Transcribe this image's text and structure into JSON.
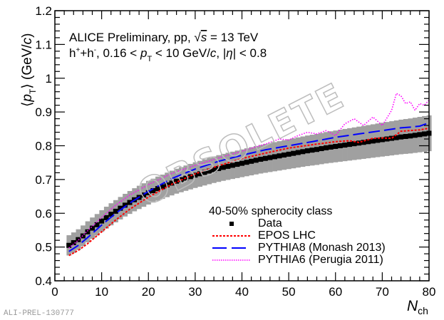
{
  "chart_data": {
    "type": "line",
    "title": "",
    "annotation_lines": {
      "line1_prefix": "ALICE Preliminary, pp, ",
      "line1_sqrt": "√",
      "line1_s": "s",
      "line1_suffix": " = 13 TeV",
      "line2_h": "h",
      "line2_plus": "+",
      "line2_mid": "+h",
      "line2_minus": "-",
      "line2_range": ", 0.16 < ",
      "line2_p": "p",
      "line2_T": "T",
      "line2_upper": " < 10 GeV/",
      "line2_c": "c",
      "line2_eta_pre": ", |",
      "line2_eta": "η",
      "line2_eta_post": "| < 0.8"
    },
    "xlabel": {
      "N": "N",
      "sub": "ch"
    },
    "ylabel": {
      "open": "⟨",
      "p": "p",
      "sub": "T",
      "close": "⟩ (GeV/",
      "c": "c",
      "end": ")"
    },
    "xlim": [
      0,
      80
    ],
    "ylim": [
      0.4,
      1.2
    ],
    "x_ticks": [
      "0",
      "10",
      "20",
      "30",
      "40",
      "50",
      "60",
      "70",
      "80"
    ],
    "y_ticks": [
      "0.4",
      "0.5",
      "0.6",
      "0.7",
      "0.8",
      "0.9",
      "1",
      "1.1",
      "1.2"
    ],
    "legend": {
      "header": "40-50% spherocity class",
      "placement": "bottom-right",
      "entries": [
        "Data",
        "EPOS LHC",
        "PYTHIA8 (Monash 2013)",
        "PYTHIA6 (Perugia 2011)"
      ]
    },
    "watermark_text": "OBSOLETE",
    "footer_label": "ALI-PREL-130777",
    "colors": {
      "data": "#000000",
      "syst": "#a0a0a0",
      "epos": "#ff0000",
      "pythia8": "#0000ff",
      "pythia6": "#ff00ff"
    },
    "series": [
      {
        "name": "Data",
        "x": [
          3,
          4,
          5,
          6,
          7,
          8,
          9,
          10,
          11,
          12,
          13,
          14,
          15,
          16,
          17,
          18,
          19,
          20,
          22,
          24,
          26,
          28,
          30,
          32,
          34,
          36,
          38,
          40,
          42,
          44,
          46,
          48,
          50,
          52,
          54,
          56,
          58,
          60,
          62,
          64,
          66,
          68,
          70,
          72,
          74,
          76,
          78,
          80
        ],
        "y": [
          0.505,
          0.513,
          0.522,
          0.533,
          0.545,
          0.556,
          0.566,
          0.577,
          0.587,
          0.597,
          0.606,
          0.615,
          0.624,
          0.632,
          0.64,
          0.647,
          0.654,
          0.661,
          0.673,
          0.684,
          0.695,
          0.704,
          0.713,
          0.721,
          0.729,
          0.736,
          0.742,
          0.748,
          0.754,
          0.76,
          0.765,
          0.77,
          0.775,
          0.78,
          0.785,
          0.789,
          0.794,
          0.798,
          0.802,
          0.806,
          0.81,
          0.814,
          0.818,
          0.822,
          0.826,
          0.829,
          0.833,
          0.837
        ],
        "syst": 0.03
      },
      {
        "name": "EPOS LHC",
        "x": [
          3,
          5,
          7,
          10,
          13,
          16,
          20,
          25,
          30,
          35,
          40,
          45,
          50,
          55,
          60,
          63,
          65,
          68,
          70,
          72,
          74,
          76,
          78,
          80
        ],
        "y": [
          0.475,
          0.49,
          0.51,
          0.545,
          0.58,
          0.612,
          0.648,
          0.686,
          0.717,
          0.741,
          0.762,
          0.778,
          0.793,
          0.803,
          0.812,
          0.815,
          0.81,
          0.822,
          0.823,
          0.822,
          0.843,
          0.845,
          0.847,
          0.852
        ]
      },
      {
        "name": "PYTHIA8 (Monash 2013)",
        "x": [
          3,
          5,
          7,
          10,
          13,
          16,
          20,
          25,
          30,
          35,
          40,
          45,
          50,
          55,
          60,
          65,
          70,
          74,
          76,
          78,
          80
        ],
        "y": [
          0.487,
          0.505,
          0.528,
          0.565,
          0.6,
          0.63,
          0.665,
          0.703,
          0.731,
          0.754,
          0.772,
          0.788,
          0.8,
          0.812,
          0.825,
          0.835,
          0.845,
          0.853,
          0.855,
          0.858,
          0.868
        ]
      },
      {
        "name": "PYTHIA6 (Perugia 2011)",
        "x": [
          3,
          5,
          7,
          10,
          13,
          16,
          20,
          25,
          30,
          35,
          40,
          45,
          48,
          50,
          52,
          54,
          56,
          58,
          60,
          62,
          64,
          66,
          68,
          70,
          72,
          73,
          74,
          75,
          76,
          77,
          78,
          79,
          80
        ],
        "y": [
          0.497,
          0.52,
          0.548,
          0.588,
          0.624,
          0.654,
          0.685,
          0.718,
          0.742,
          0.764,
          0.784,
          0.805,
          0.82,
          0.817,
          0.83,
          0.84,
          0.835,
          0.845,
          0.83,
          0.865,
          0.88,
          0.86,
          0.885,
          0.86,
          0.905,
          0.955,
          0.948,
          0.925,
          0.93,
          0.905,
          0.925,
          0.92,
          0.935
        ]
      }
    ]
  }
}
